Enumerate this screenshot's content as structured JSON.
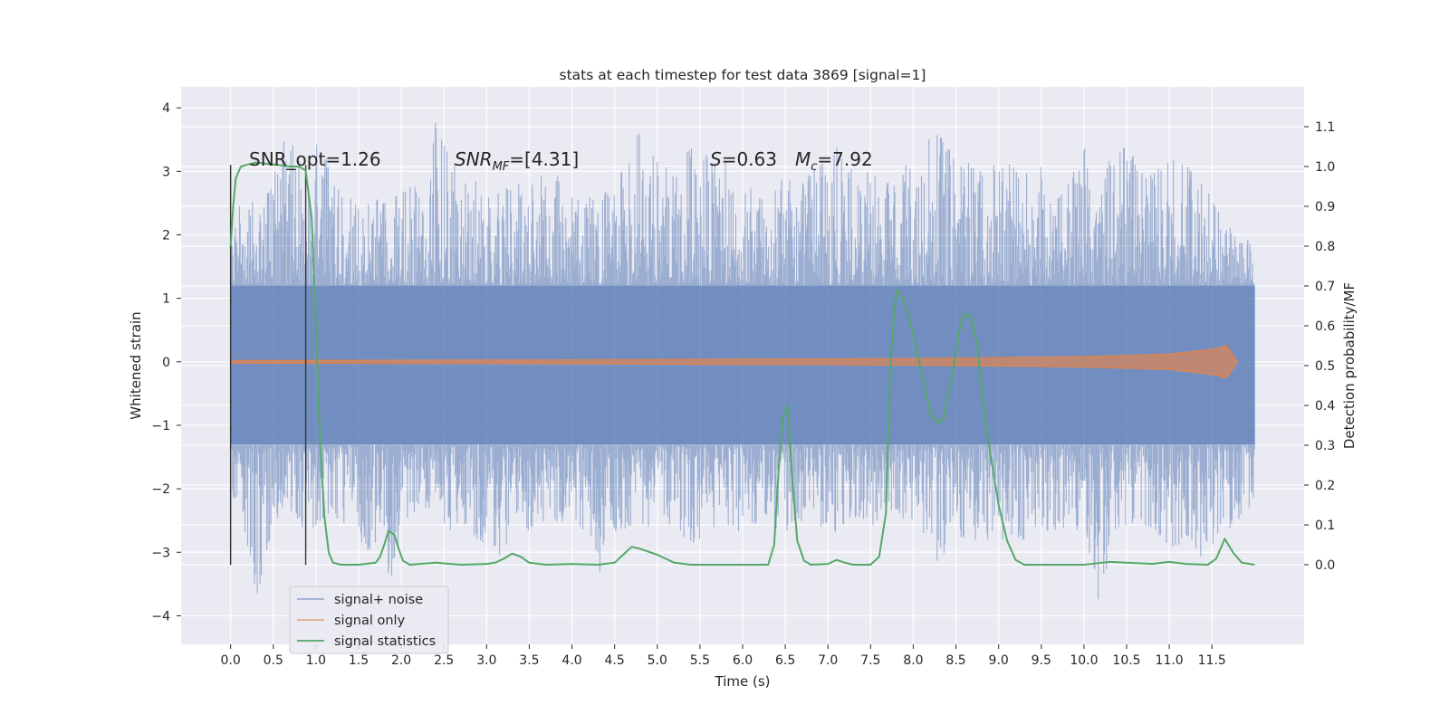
{
  "chart_data": {
    "type": "line",
    "title": "stats at each timestep for test data 3869 [signal=1]",
    "xlabel": "Time (s)",
    "ylabel_left": "Whitened strain",
    "ylabel_right": "Detection probability/MF",
    "xlim": [
      -0.58,
      12.58
    ],
    "ylim_left": [
      -4.45,
      4.33
    ],
    "ylim_right": [
      -0.2,
      1.2
    ],
    "x_ticks": [
      0.0,
      0.5,
      1.0,
      1.5,
      2.0,
      2.5,
      3.0,
      3.5,
      4.0,
      4.5,
      5.0,
      5.5,
      6.0,
      6.5,
      7.0,
      7.5,
      8.0,
      8.5,
      9.0,
      9.5,
      10.0,
      10.5,
      11.0,
      11.5
    ],
    "x_tick_labels": [
      "0.0",
      "0.5",
      "1.0",
      "1.5",
      "2.0",
      "2.5",
      "3.0",
      "3.5",
      "4.0",
      "4.5",
      "5.0",
      "5.5",
      "6.0",
      "6.5",
      "7.0",
      "7.5",
      "8.0",
      "8.5",
      "9.0",
      "9.5",
      "10.0",
      "10.5",
      "11.0",
      "11.5"
    ],
    "left_ticks": [
      -4,
      -3,
      -2,
      -1,
      0,
      1,
      2,
      3,
      4
    ],
    "left_tick_labels": [
      "−4",
      "−3",
      "−2",
      "−1",
      "0",
      "1",
      "2",
      "3",
      "4"
    ],
    "right_ticks": [
      0.0,
      0.1,
      0.2,
      0.3,
      0.4,
      0.5,
      0.6,
      0.7,
      0.8,
      0.9,
      1.0,
      1.1
    ],
    "right_tick_labels": [
      "0.0",
      "0.1",
      "0.2",
      "0.3",
      "0.4",
      "0.5",
      "0.6",
      "0.7",
      "0.8",
      "0.9",
      "1.0",
      "1.1"
    ],
    "grid": true,
    "legend_position": "lower-left",
    "annotations": {
      "snr_opt": "SNR_opt=1.26",
      "snr_mf_base": "SNR",
      "snr_mf_sub": "MF",
      "snr_mf_rest": "=[4.31]",
      "s_symbol": "S",
      "s_rest": "=0.63",
      "mc_symbol": "M",
      "mc_sub": "c",
      "mc_rest": "=7.92"
    },
    "vertical_lines_x": [
      0.0,
      0.88
    ],
    "vertical_lines_y": [
      -3.2,
      3.1
    ],
    "series": [
      {
        "name": "signal+ noise",
        "axis": "left",
        "color": "#4c72b0",
        "alpha": 0.5,
        "x_range": [
          0.0,
          12.0
        ],
        "envelope_points": [
          [
            0.0,
            2.2,
            -2.3
          ],
          [
            0.1,
            2.6,
            -2.2
          ],
          [
            0.2,
            2.4,
            -3.0
          ],
          [
            0.25,
            2.7,
            -3.2
          ],
          [
            0.3,
            2.5,
            -3.8
          ],
          [
            0.5,
            2.9,
            -2.6
          ],
          [
            0.7,
            3.95,
            -2.3
          ],
          [
            0.75,
            3.0,
            -2.7
          ],
          [
            0.8,
            3.3,
            -3.1
          ],
          [
            0.9,
            2.6,
            -3.0
          ],
          [
            1.0,
            3.85,
            -2.6
          ],
          [
            1.2,
            2.8,
            -2.4
          ],
          [
            1.5,
            2.5,
            -2.9
          ],
          [
            1.8,
            2.6,
            -3.1
          ],
          [
            1.9,
            2.4,
            -3.6
          ],
          [
            2.0,
            3.0,
            -2.6
          ],
          [
            2.3,
            2.6,
            -2.3
          ],
          [
            2.4,
            3.8,
            -2.5
          ],
          [
            2.6,
            3.2,
            -2.7
          ],
          [
            2.8,
            3.0,
            -2.6
          ],
          [
            3.0,
            2.6,
            -3.1
          ],
          [
            3.1,
            2.7,
            -3.5
          ],
          [
            3.3,
            3.1,
            -2.6
          ],
          [
            3.5,
            2.7,
            -2.7
          ],
          [
            3.7,
            3.2,
            -2.5
          ],
          [
            4.0,
            2.6,
            -2.6
          ],
          [
            4.2,
            2.6,
            -2.7
          ],
          [
            4.3,
            2.6,
            -3.4
          ],
          [
            4.5,
            2.8,
            -2.8
          ],
          [
            4.7,
            3.3,
            -2.6
          ],
          [
            4.8,
            3.75,
            -2.7
          ],
          [
            5.0,
            3.2,
            -2.5
          ],
          [
            5.2,
            3.0,
            -2.6
          ],
          [
            5.4,
            3.5,
            -2.9
          ],
          [
            5.5,
            3.3,
            -2.8
          ],
          [
            5.8,
            3.2,
            -2.6
          ],
          [
            6.0,
            2.8,
            -2.7
          ],
          [
            6.3,
            2.6,
            -2.6
          ],
          [
            6.5,
            3.0,
            -2.7
          ],
          [
            6.7,
            2.9,
            -2.6
          ],
          [
            7.0,
            3.2,
            -2.6
          ],
          [
            7.1,
            3.4,
            -2.7
          ],
          [
            7.3,
            3.0,
            -2.5
          ],
          [
            7.5,
            3.0,
            -2.6
          ],
          [
            7.8,
            2.9,
            -2.4
          ],
          [
            8.0,
            3.4,
            -2.6
          ],
          [
            8.3,
            3.6,
            -3.2
          ],
          [
            8.5,
            3.35,
            -2.8
          ],
          [
            8.6,
            3.3,
            -2.9
          ],
          [
            8.8,
            3.0,
            -2.8
          ],
          [
            9.0,
            3.2,
            -2.8
          ],
          [
            9.3,
            3.0,
            -2.8
          ],
          [
            9.5,
            3.1,
            -2.7
          ],
          [
            9.7,
            2.6,
            -2.8
          ],
          [
            10.0,
            3.4,
            -2.6
          ],
          [
            10.1,
            3.0,
            -3.3
          ],
          [
            10.2,
            3.0,
            -4.1
          ],
          [
            10.3,
            3.3,
            -2.8
          ],
          [
            10.5,
            3.4,
            -2.9
          ],
          [
            10.7,
            3.0,
            -2.7
          ],
          [
            11.0,
            3.2,
            -3.0
          ],
          [
            11.2,
            3.1,
            -2.8
          ],
          [
            11.4,
            2.8,
            -3.2
          ],
          [
            11.6,
            2.4,
            -2.7
          ],
          [
            11.8,
            2.0,
            -2.6
          ],
          [
            12.0,
            1.9,
            -2.2
          ]
        ],
        "dense_band": [
          1.2,
          -1.3
        ]
      },
      {
        "name": "signal only",
        "axis": "left",
        "color": "#dd8452",
        "alpha": 0.7,
        "points": [
          [
            0.0,
            0.02
          ],
          [
            4.0,
            0.03
          ],
          [
            8.0,
            0.05
          ],
          [
            10.0,
            0.08
          ],
          [
            11.0,
            0.12
          ],
          [
            11.4,
            0.18
          ],
          [
            11.6,
            0.22
          ],
          [
            11.66,
            0.26
          ],
          [
            11.7,
            0.2
          ],
          [
            11.8,
            0.0
          ]
        ]
      },
      {
        "name": "signal statistics",
        "axis": "right",
        "color": "#55a868",
        "points": [
          [
            0.0,
            0.8
          ],
          [
            0.03,
            0.9
          ],
          [
            0.06,
            0.97
          ],
          [
            0.12,
            1.0
          ],
          [
            0.2,
            1.005
          ],
          [
            0.3,
            1.01
          ],
          [
            0.5,
            1.005
          ],
          [
            0.7,
            1.0
          ],
          [
            0.8,
            1.0
          ],
          [
            0.88,
            0.99
          ],
          [
            0.95,
            0.87
          ],
          [
            1.0,
            0.6
          ],
          [
            1.05,
            0.3
          ],
          [
            1.1,
            0.12
          ],
          [
            1.15,
            0.03
          ],
          [
            1.2,
            0.005
          ],
          [
            1.3,
            0.0
          ],
          [
            1.5,
            0.0
          ],
          [
            1.7,
            0.005
          ],
          [
            1.75,
            0.02
          ],
          [
            1.8,
            0.05
          ],
          [
            1.85,
            0.085
          ],
          [
            1.92,
            0.075
          ],
          [
            1.97,
            0.04
          ],
          [
            2.02,
            0.01
          ],
          [
            2.1,
            0.0
          ],
          [
            2.4,
            0.005
          ],
          [
            2.7,
            0.0
          ],
          [
            3.0,
            0.002
          ],
          [
            3.1,
            0.005
          ],
          [
            3.2,
            0.015
          ],
          [
            3.3,
            0.028
          ],
          [
            3.4,
            0.02
          ],
          [
            3.5,
            0.005
          ],
          [
            3.7,
            0.0
          ],
          [
            4.0,
            0.002
          ],
          [
            4.3,
            0.0
          ],
          [
            4.5,
            0.005
          ],
          [
            4.6,
            0.025
          ],
          [
            4.7,
            0.045
          ],
          [
            4.8,
            0.04
          ],
          [
            5.0,
            0.025
          ],
          [
            5.2,
            0.005
          ],
          [
            5.4,
            0.0
          ],
          [
            6.0,
            0.0
          ],
          [
            6.3,
            0.0
          ],
          [
            6.37,
            0.05
          ],
          [
            6.42,
            0.23
          ],
          [
            6.47,
            0.37
          ],
          [
            6.53,
            0.4
          ],
          [
            6.58,
            0.22
          ],
          [
            6.64,
            0.06
          ],
          [
            6.72,
            0.01
          ],
          [
            6.8,
            0.0
          ],
          [
            7.0,
            0.002
          ],
          [
            7.1,
            0.012
          ],
          [
            7.2,
            0.005
          ],
          [
            7.3,
            0.0
          ],
          [
            7.5,
            0.0
          ],
          [
            7.6,
            0.02
          ],
          [
            7.68,
            0.13
          ],
          [
            7.73,
            0.5
          ],
          [
            7.8,
            0.69
          ],
          [
            7.88,
            0.67
          ],
          [
            8.0,
            0.58
          ],
          [
            8.1,
            0.48
          ],
          [
            8.2,
            0.38
          ],
          [
            8.3,
            0.355
          ],
          [
            8.35,
            0.365
          ],
          [
            8.45,
            0.47
          ],
          [
            8.55,
            0.6
          ],
          [
            8.6,
            0.63
          ],
          [
            8.68,
            0.62
          ],
          [
            8.75,
            0.55
          ],
          [
            8.85,
            0.35
          ],
          [
            9.0,
            0.15
          ],
          [
            9.1,
            0.06
          ],
          [
            9.2,
            0.012
          ],
          [
            9.3,
            0.0
          ],
          [
            10.0,
            0.0
          ],
          [
            10.3,
            0.007
          ],
          [
            10.5,
            0.005
          ],
          [
            10.8,
            0.002
          ],
          [
            11.0,
            0.007
          ],
          [
            11.2,
            0.002
          ],
          [
            11.45,
            0.0
          ],
          [
            11.55,
            0.015
          ],
          [
            11.65,
            0.065
          ],
          [
            11.75,
            0.03
          ],
          [
            11.85,
            0.005
          ],
          [
            12.0,
            0.0
          ]
        ]
      }
    ]
  }
}
